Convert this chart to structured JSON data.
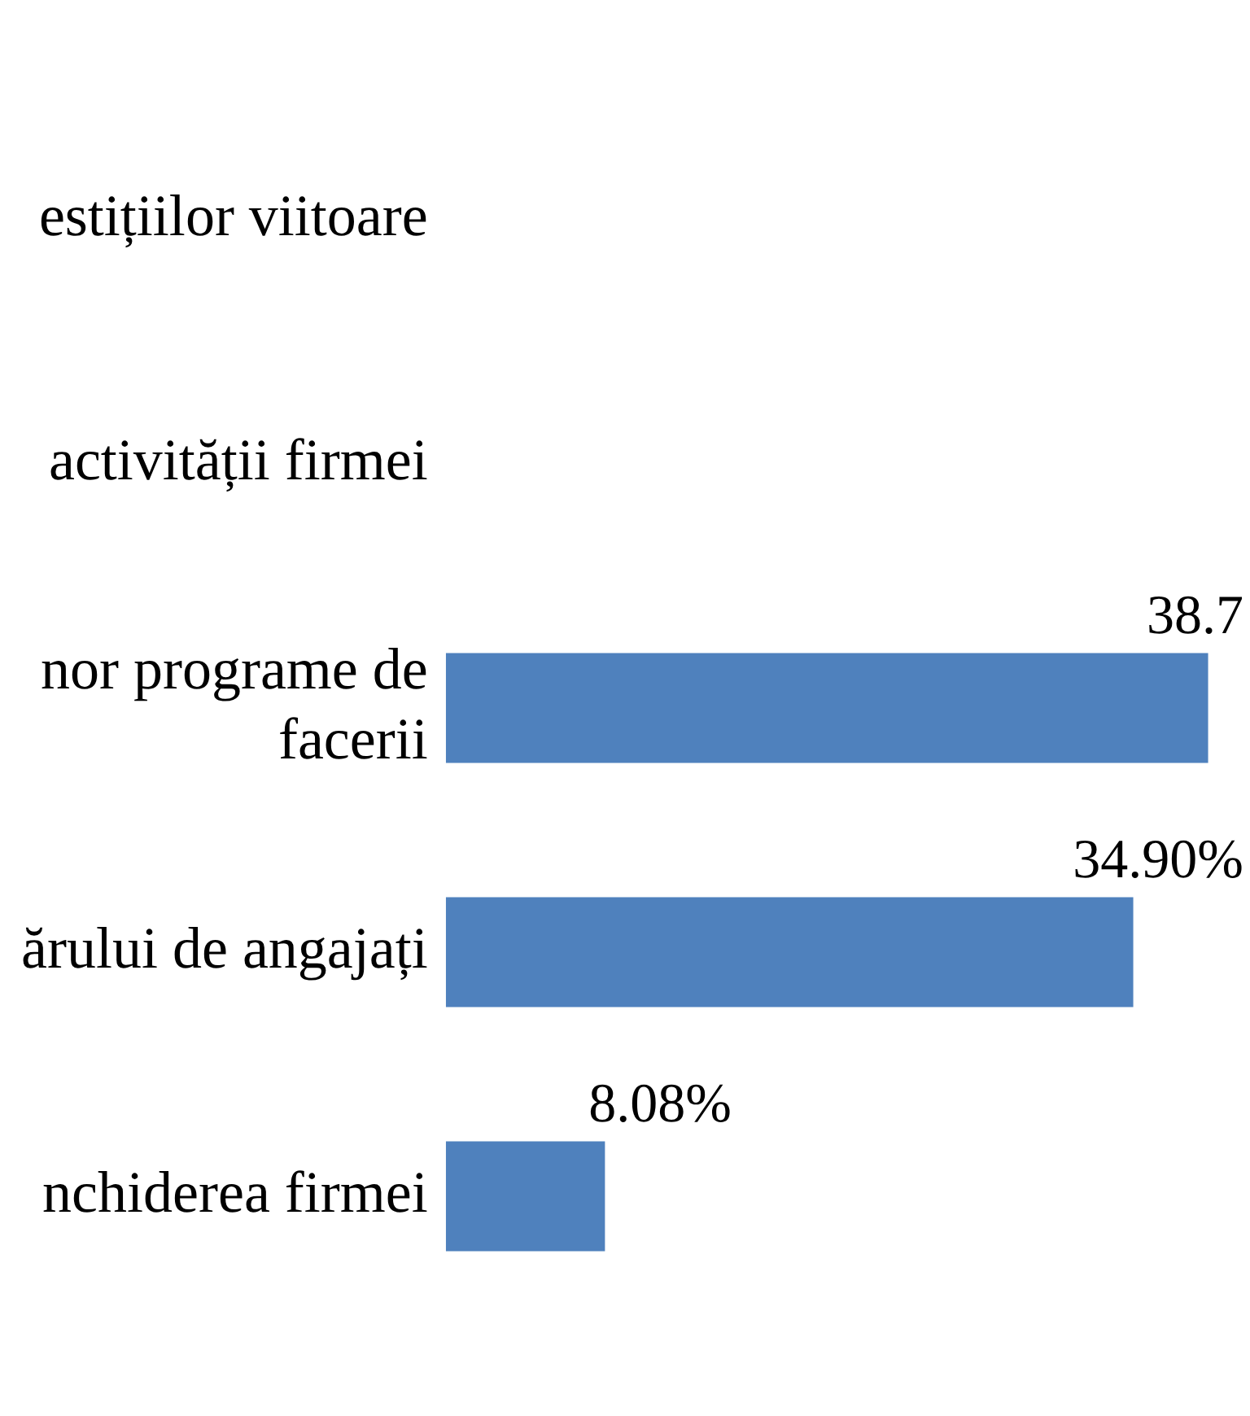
{
  "chart_data": {
    "type": "bar",
    "orientation": "horizontal",
    "categories": [
      "estițiilor viitoare",
      "activității firmei",
      [
        "nor programe de",
        "facerii"
      ],
      "ărului de angajați",
      "nchiderea firmei"
    ],
    "values": [
      null,
      null,
      38.7,
      34.9,
      8.08
    ],
    "value_labels": [
      null,
      null,
      "38.7",
      "34.90%",
      "8.08%"
    ],
    "color": "#4f81bd",
    "legend": false,
    "tick_labels": "y"
  }
}
